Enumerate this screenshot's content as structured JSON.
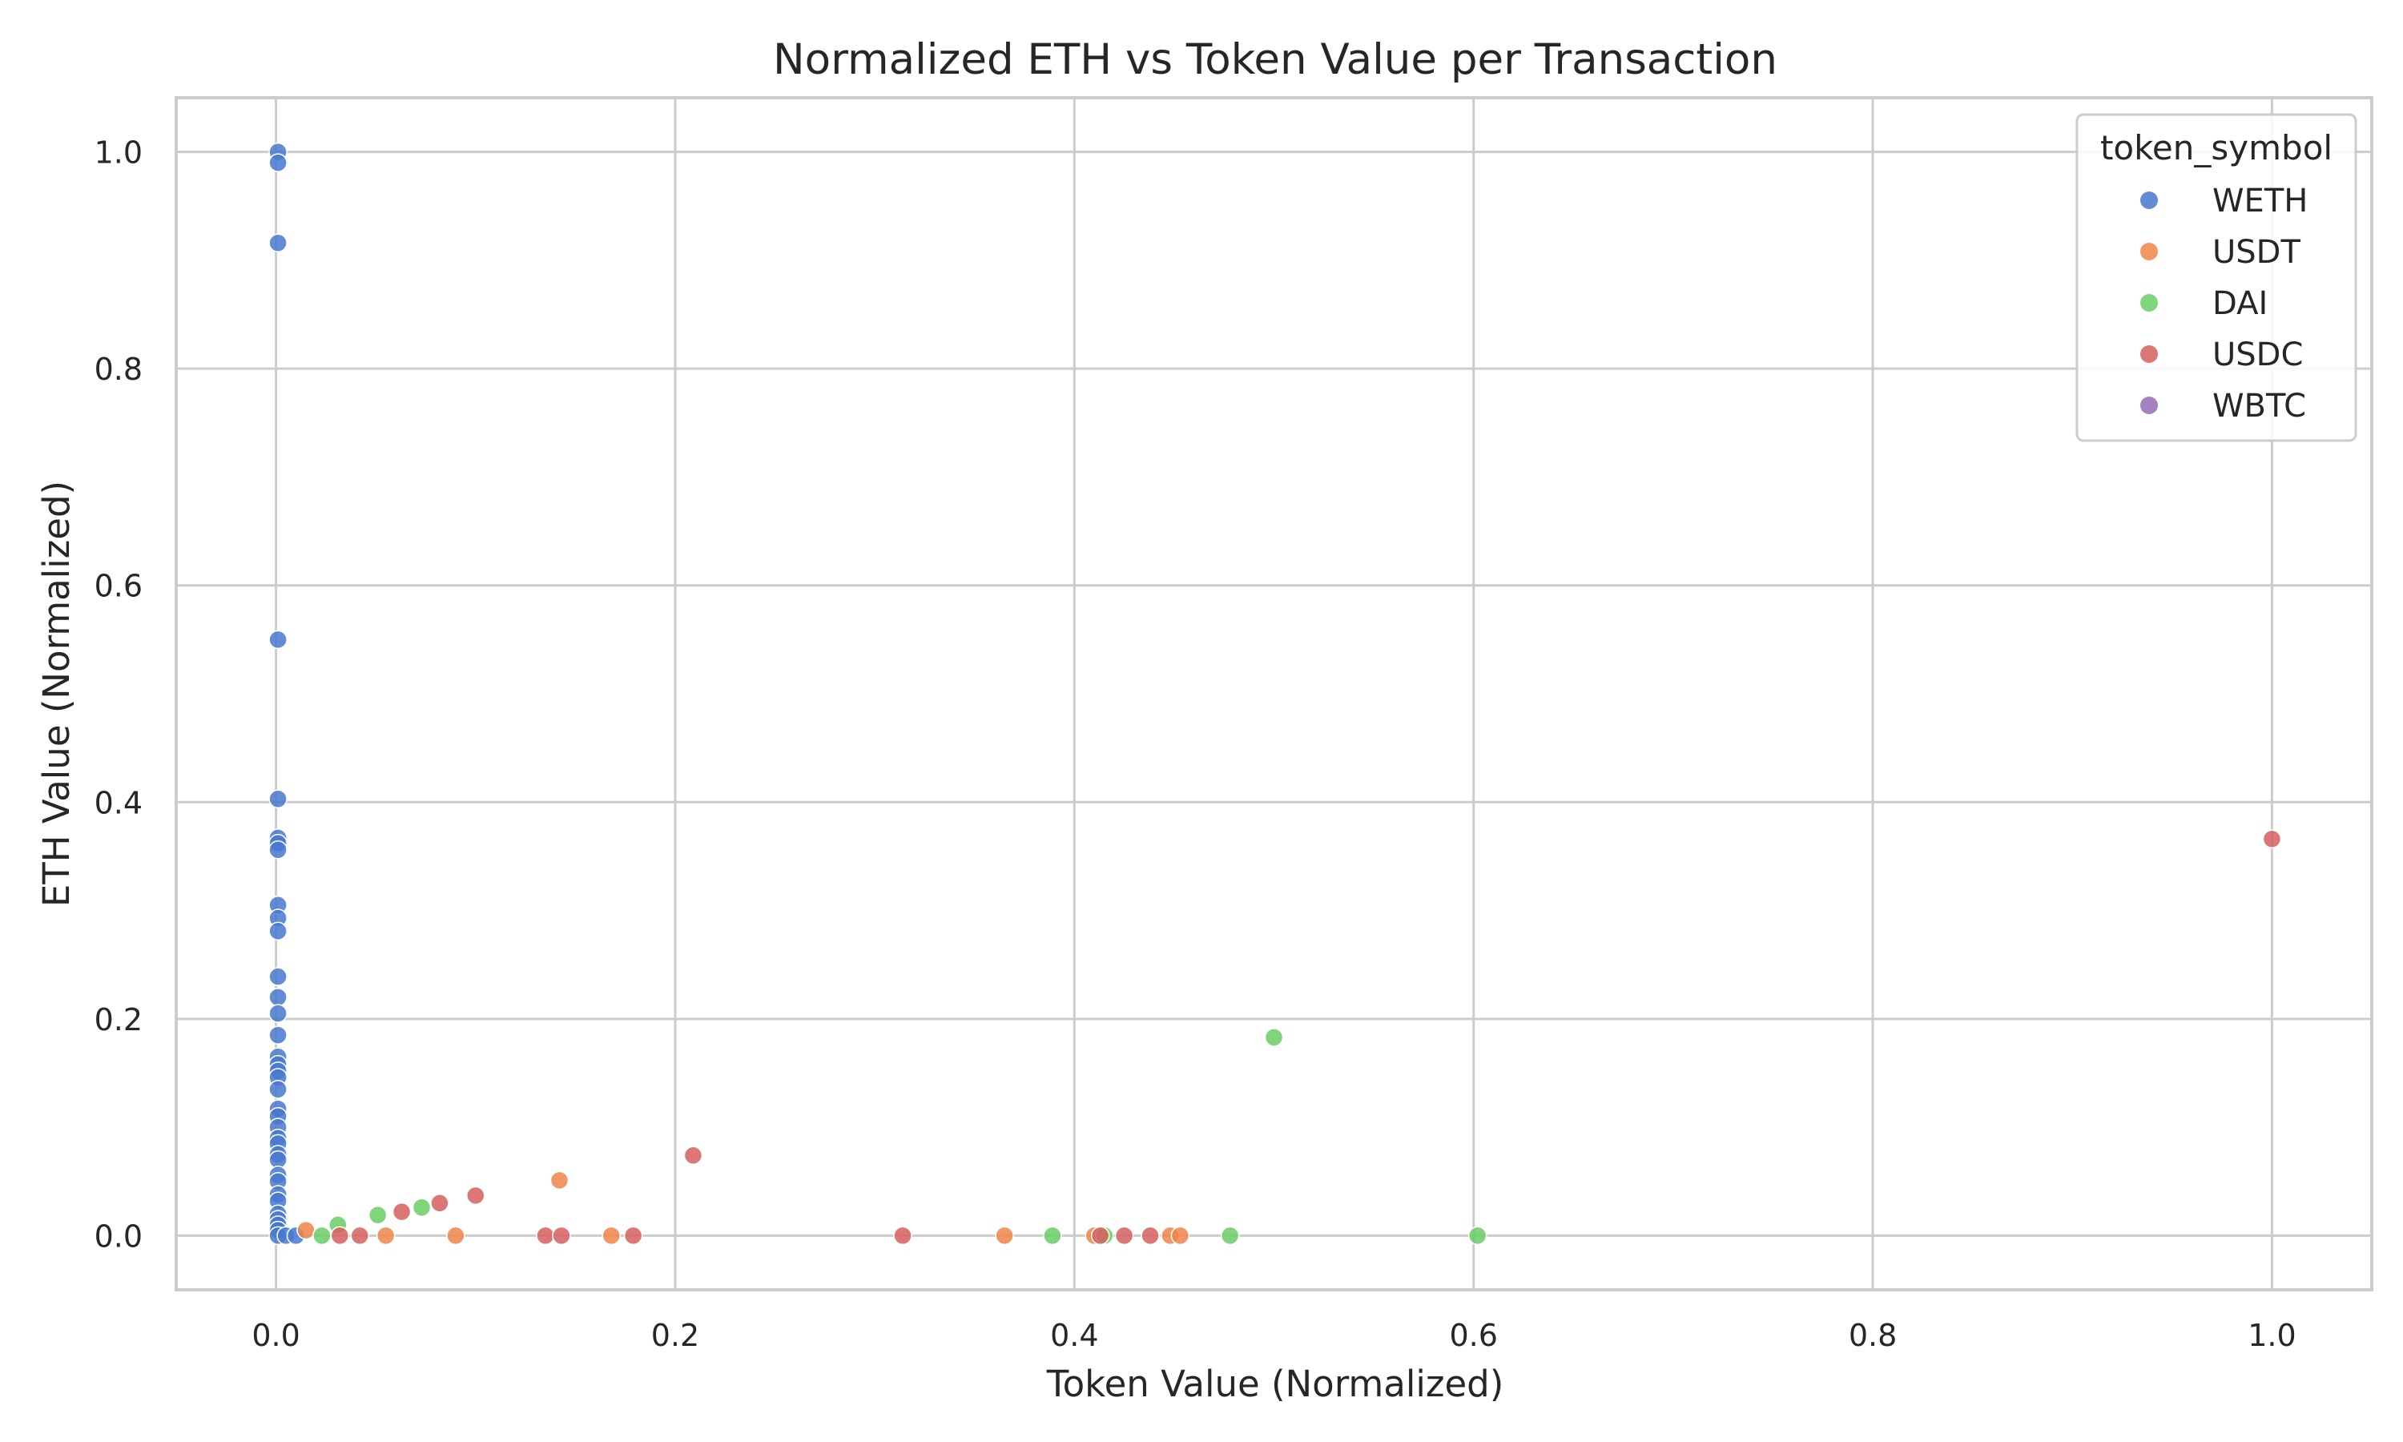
{
  "chart_data": {
    "type": "scatter",
    "title": "Normalized ETH vs Token Value per Transaction",
    "xlabel": "Token Value (Normalized)",
    "ylabel": "ETH Value (Normalized)",
    "xlim": [
      -0.05,
      1.05
    ],
    "ylim": [
      -0.05,
      1.05
    ],
    "xticks": [
      0.0,
      0.2,
      0.4,
      0.6,
      0.8,
      1.0
    ],
    "yticks": [
      0.0,
      0.2,
      0.4,
      0.6,
      0.8,
      1.0
    ],
    "xtick_labels": [
      "0.0",
      "0.2",
      "0.4",
      "0.6",
      "0.8",
      "1.0"
    ],
    "ytick_labels": [
      "0.0",
      "0.2",
      "0.4",
      "0.6",
      "0.8",
      "1.0"
    ],
    "grid": true,
    "legend": {
      "title": "token_symbol",
      "position": "top-right"
    },
    "series": [
      {
        "name": "WETH",
        "color": "#4878d0",
        "points": [
          [
            0.001,
            1.0
          ],
          [
            0.001,
            0.99
          ],
          [
            0.001,
            0.916
          ],
          [
            0.001,
            0.55
          ],
          [
            0.001,
            0.403
          ],
          [
            0.001,
            0.367
          ],
          [
            0.001,
            0.362
          ],
          [
            0.001,
            0.356
          ],
          [
            0.001,
            0.305
          ],
          [
            0.001,
            0.293
          ],
          [
            0.001,
            0.281
          ],
          [
            0.001,
            0.239
          ],
          [
            0.001,
            0.22
          ],
          [
            0.001,
            0.205
          ],
          [
            0.001,
            0.185
          ],
          [
            0.001,
            0.165
          ],
          [
            0.001,
            0.158
          ],
          [
            0.001,
            0.152
          ],
          [
            0.001,
            0.146
          ],
          [
            0.001,
            0.135
          ],
          [
            0.001,
            0.117
          ],
          [
            0.001,
            0.11
          ],
          [
            0.001,
            0.1
          ],
          [
            0.001,
            0.09
          ],
          [
            0.001,
            0.085
          ],
          [
            0.001,
            0.075
          ],
          [
            0.001,
            0.07
          ],
          [
            0.001,
            0.056
          ],
          [
            0.001,
            0.05
          ],
          [
            0.001,
            0.038
          ],
          [
            0.001,
            0.032
          ],
          [
            0.001,
            0.02
          ],
          [
            0.001,
            0.015
          ],
          [
            0.001,
            0.01
          ],
          [
            0.001,
            0.005
          ],
          [
            0.001,
            0.0
          ],
          [
            0.005,
            0.0
          ],
          [
            0.01,
            0.0
          ]
        ]
      },
      {
        "name": "USDT",
        "color": "#ee854a",
        "points": [
          [
            0.015,
            0.005
          ],
          [
            0.055,
            0.0
          ],
          [
            0.09,
            0.0
          ],
          [
            0.142,
            0.051
          ],
          [
            0.168,
            0.0
          ],
          [
            0.365,
            0.0
          ],
          [
            0.41,
            0.0
          ],
          [
            0.448,
            0.0
          ],
          [
            0.453,
            0.0
          ]
        ]
      },
      {
        "name": "DAI",
        "color": "#6acc64",
        "points": [
          [
            0.023,
            0.0
          ],
          [
            0.031,
            0.01
          ],
          [
            0.051,
            0.019
          ],
          [
            0.073,
            0.026
          ],
          [
            0.389,
            0.0
          ],
          [
            0.415,
            0.0
          ],
          [
            0.478,
            0.0
          ],
          [
            0.5,
            0.183
          ],
          [
            0.602,
            0.0
          ]
        ]
      },
      {
        "name": "USDC",
        "color": "#d65f5f",
        "points": [
          [
            0.032,
            0.0
          ],
          [
            0.042,
            0.0
          ],
          [
            0.063,
            0.022
          ],
          [
            0.082,
            0.03
          ],
          [
            0.1,
            0.037
          ],
          [
            0.135,
            0.0
          ],
          [
            0.143,
            0.0
          ],
          [
            0.179,
            0.0
          ],
          [
            0.209,
            0.074
          ],
          [
            0.314,
            0.0
          ],
          [
            0.413,
            0.0
          ],
          [
            0.425,
            0.0
          ],
          [
            0.438,
            0.0
          ],
          [
            1.0,
            0.366
          ]
        ]
      },
      {
        "name": "WBTC",
        "color": "#956cb4",
        "points": []
      }
    ]
  }
}
